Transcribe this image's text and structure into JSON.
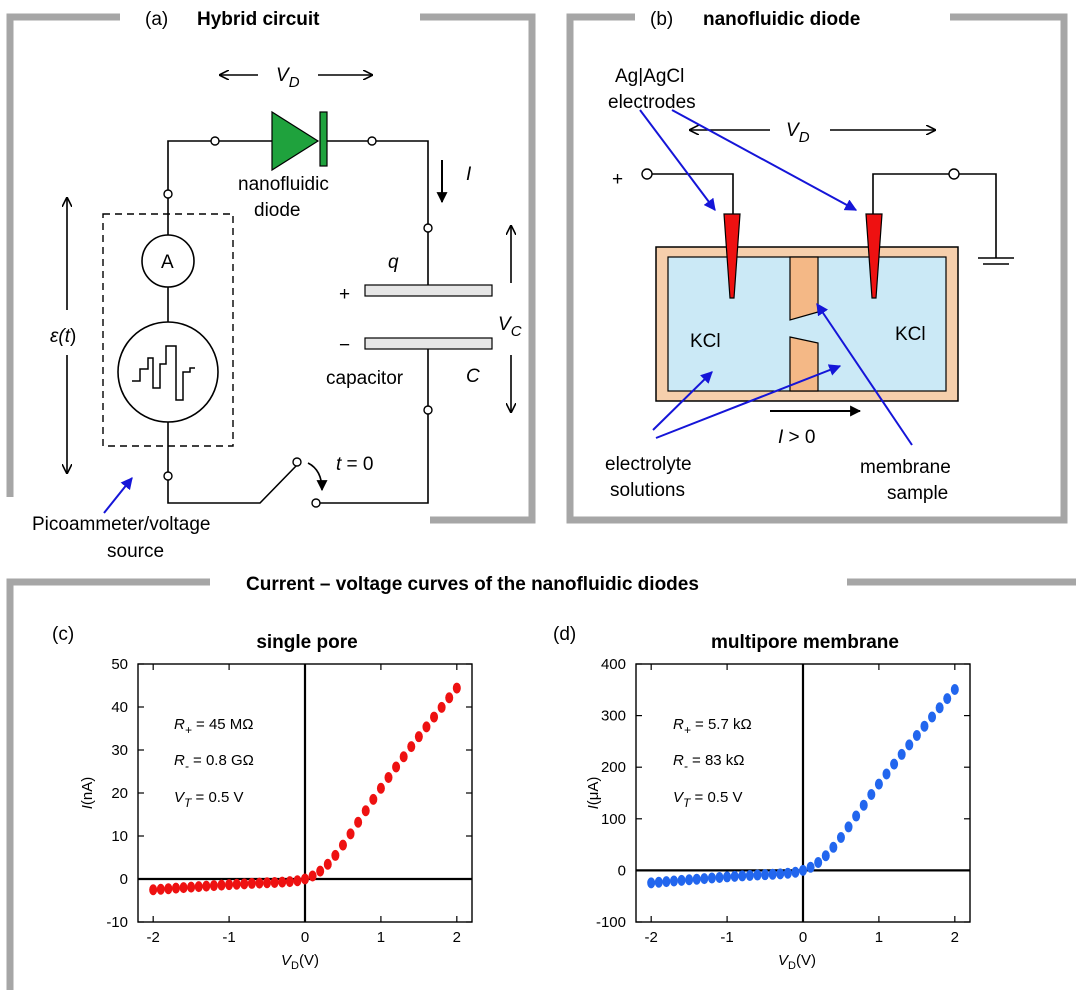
{
  "panel_a": {
    "label": "(a)",
    "title": "Hybrid circuit",
    "vd": "V",
    "vd_sub": "D",
    "current": "I",
    "diode_label_1": "nanofluidic",
    "diode_label_2": "diode",
    "ammeter": "A",
    "emf_eps": "ε(",
    "emf_t": "t",
    "emf_close": ")",
    "charge": "q",
    "plus": "+",
    "minus": "−",
    "vc": "V",
    "vc_sub": "C",
    "capacitor": "capacitor",
    "cap_symbol": "C",
    "switch_t": "t",
    "switch_eq": " = 0",
    "source_label_1": "Picoammeter/voltage",
    "source_label_2": "source"
  },
  "panel_b": {
    "label": "(b)",
    "title": "nanofluidic diode",
    "electrodes_1": "Ag|AgCl",
    "electrodes_2": "electrodes",
    "vd": "V",
    "vd_sub": "D",
    "plus": "+",
    "kcl_left": "KCl",
    "kcl_right": "KCl",
    "current_label": "I",
    "current_cond": " > 0",
    "electrolyte_1": "electrolyte",
    "electrolyte_2": "solutions",
    "membrane_1": "membrane",
    "membrane_2": "sample"
  },
  "section_title": "Current – voltage curves of the nanofluidic diodes",
  "chart_data": [
    {
      "type": "scatter",
      "panel_label": "(c)",
      "title": "single pore",
      "ylabel_sym": "I",
      "ylabel_unit": "(nA)",
      "xlabel_sym": "V",
      "xlabel_sub": "D",
      "xlabel_unit": "(V)",
      "xlim": [
        -2.2,
        2.2
      ],
      "ylim": [
        -10,
        50
      ],
      "xticks": [
        -2,
        -1,
        0,
        1,
        2
      ],
      "yticks": [
        -10,
        0,
        10,
        20,
        30,
        40,
        50
      ],
      "color": "#ee1111",
      "model": {
        "R_plus": 0.045,
        "R_minus": 0.8,
        "V_T": 0.5
      },
      "annotations": [
        {
          "sym": "R",
          "sub": "+",
          "text": " = 45 MΩ"
        },
        {
          "sym": "R",
          "sub": "-",
          "text": " = 0.8 GΩ"
        },
        {
          "sym": "V",
          "sub": "T",
          "text": " = 0.5 V"
        }
      ]
    },
    {
      "type": "scatter",
      "panel_label": "(d)",
      "title": "multipore membrane",
      "ylabel_sym": "I",
      "ylabel_unit": "(μA)",
      "xlabel_sym": "V",
      "xlabel_sub": "D",
      "xlabel_unit": "(V)",
      "xlim": [
        -2.2,
        2.2
      ],
      "ylim": [
        -100,
        400
      ],
      "xticks": [
        -2,
        -1,
        0,
        1,
        2
      ],
      "yticks": [
        -100,
        0,
        100,
        200,
        300,
        400
      ],
      "color": "#2266ee",
      "model": {
        "R_plus": 0.0057,
        "R_minus": 0.083,
        "V_T": 0.5
      },
      "annotations": [
        {
          "sym": "R",
          "sub": "+",
          "text": " = 5.7 kΩ"
        },
        {
          "sym": "R",
          "sub": "-",
          "text": " = 83 kΩ"
        },
        {
          "sym": "V",
          "sub": "T",
          "text": " = 0.5 V"
        }
      ]
    }
  ]
}
